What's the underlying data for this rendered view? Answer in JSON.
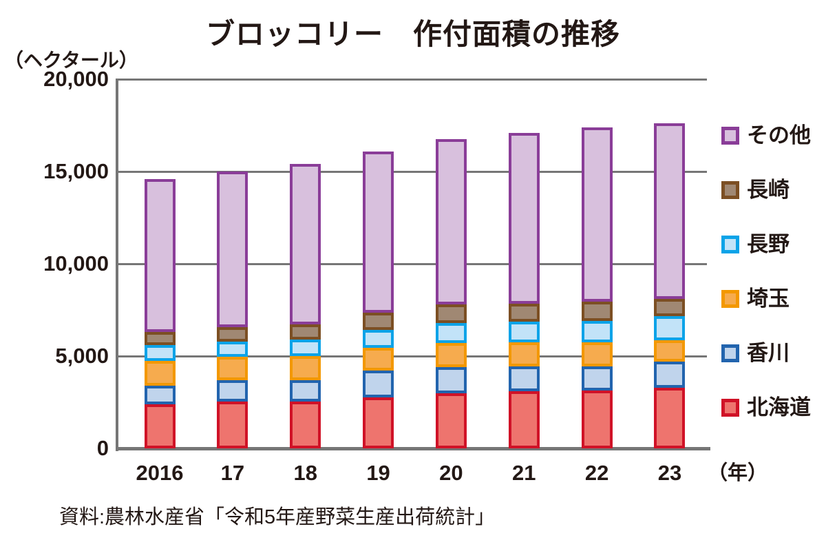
{
  "title": "ブロッコリー　作付面積の推移",
  "y_axis": {
    "unit": "（ヘクタール）",
    "ticks": [
      {
        "label": "20,000",
        "value": 20000
      },
      {
        "label": "15,000",
        "value": 15000
      },
      {
        "label": "10,000",
        "value": 10000
      },
      {
        "label": "5,000",
        "value": 5000
      },
      {
        "label": "0",
        "value": 0
      }
    ]
  },
  "x_axis": {
    "labels": [
      "2016",
      "17",
      "18",
      "19",
      "20",
      "21",
      "22",
      "23"
    ],
    "unit": "（年）"
  },
  "source": "資料:農林水産省「令和5年産野菜生産出荷統計」",
  "colors": {
    "text": "#231815",
    "grid": "#767676",
    "axis": "#767676",
    "background": "#ffffff"
  },
  "chart_data": {
    "type": "bar",
    "stacked": true,
    "title": "ブロッコリー　作付面積の推移",
    "ylabel": "（ヘクタール）",
    "xlabel": "（年）",
    "ylim": [
      0,
      20000
    ],
    "grid": true,
    "legend_position": "right",
    "categories": [
      "2016",
      "17",
      "18",
      "19",
      "20",
      "21",
      "22",
      "23"
    ],
    "series": [
      {
        "key": "hokkaido",
        "name": "北海道",
        "fill": "#ee746e",
        "border": "#d01227",
        "values": [
          2400,
          2550,
          2550,
          2750,
          3000,
          3100,
          3150,
          3300
        ]
      },
      {
        "key": "kagawa",
        "name": "香川",
        "fill": "#c0d4ec",
        "border": "#2264ae",
        "values": [
          1000,
          1150,
          1150,
          1450,
          1400,
          1350,
          1300,
          1400
        ]
      },
      {
        "key": "saitama",
        "name": "埼玉",
        "fill": "#f6ab4e",
        "border": "#f39800",
        "values": [
          1350,
          1250,
          1300,
          1250,
          1300,
          1300,
          1300,
          1150
        ]
      },
      {
        "key": "nagano",
        "name": "長野",
        "fill": "#c2e3f8",
        "border": "#0ba3e8",
        "values": [
          850,
          850,
          900,
          950,
          1100,
          1100,
          1150,
          1300
        ]
      },
      {
        "key": "nagasaki",
        "name": "長崎",
        "fill": "#a08873",
        "border": "#7c4f23",
        "values": [
          700,
          750,
          800,
          950,
          1000,
          1000,
          1050,
          950
        ]
      },
      {
        "key": "others",
        "name": "その他",
        "fill": "#d8c0dd",
        "border": "#8a3d98",
        "values": [
          8300,
          8450,
          8700,
          8750,
          8950,
          9250,
          9450,
          9500
        ]
      }
    ],
    "totals": [
      14600,
      15000,
      15400,
      16100,
      16750,
      17100,
      17400,
      17600
    ]
  }
}
